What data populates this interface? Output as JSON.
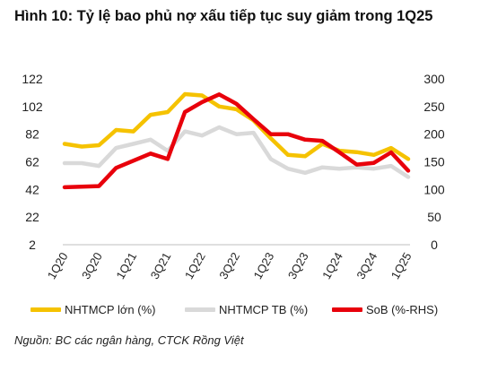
{
  "title": "Hình 10: Tỷ lệ bao phủ nợ xấu tiếp tục suy giảm trong 1Q25",
  "source": "Nguồn: BC các ngân hàng, CTCK Rồng Việt",
  "chart_data": {
    "type": "line",
    "categories": [
      "1Q20",
      "2Q20",
      "3Q20",
      "4Q20",
      "1Q21",
      "2Q21",
      "3Q21",
      "4Q21",
      "1Q22",
      "2Q22",
      "3Q22",
      "4Q22",
      "1Q23",
      "2Q23",
      "3Q23",
      "4Q23",
      "1Q24",
      "2Q24",
      "3Q24",
      "4Q24",
      "1Q25"
    ],
    "x_tick_labels": [
      "1Q20",
      "3Q20",
      "1Q21",
      "3Q21",
      "1Q22",
      "3Q22",
      "1Q23",
      "3Q23",
      "1Q24",
      "3Q24",
      "1Q25"
    ],
    "y_left": {
      "ticks": [
        2,
        22,
        42,
        62,
        82,
        102,
        122
      ],
      "min": 2,
      "max": 122
    },
    "y_right": {
      "ticks": [
        0,
        50,
        100,
        150,
        200,
        250,
        300
      ],
      "min": 0,
      "max": 300
    },
    "grid": false,
    "legend_position": "bottom",
    "series": [
      {
        "name": "NHTMCP lớn (%)",
        "axis": "left",
        "color": "#F5C200",
        "values": [
          75,
          73,
          74,
          85,
          84,
          96,
          98,
          111,
          110,
          102,
          100,
          92,
          79,
          67,
          66,
          75,
          70,
          69,
          67,
          72,
          64
        ]
      },
      {
        "name": "NHTMCP TB (%)",
        "axis": "left",
        "color": "#D9D9D9",
        "values": [
          61,
          61,
          59,
          72,
          75,
          78,
          70,
          84,
          81,
          87,
          82,
          83,
          64,
          57,
          54,
          58,
          57,
          58,
          57,
          59,
          51
        ]
      },
      {
        "name": "SoB (%-RHS)",
        "axis": "right",
        "color": "#E8000B",
        "values": [
          104,
          105,
          106,
          139,
          152,
          165,
          155,
          240,
          258,
          272,
          255,
          227,
          200,
          200,
          190,
          188,
          167,
          145,
          148,
          167,
          134
        ]
      }
    ]
  }
}
